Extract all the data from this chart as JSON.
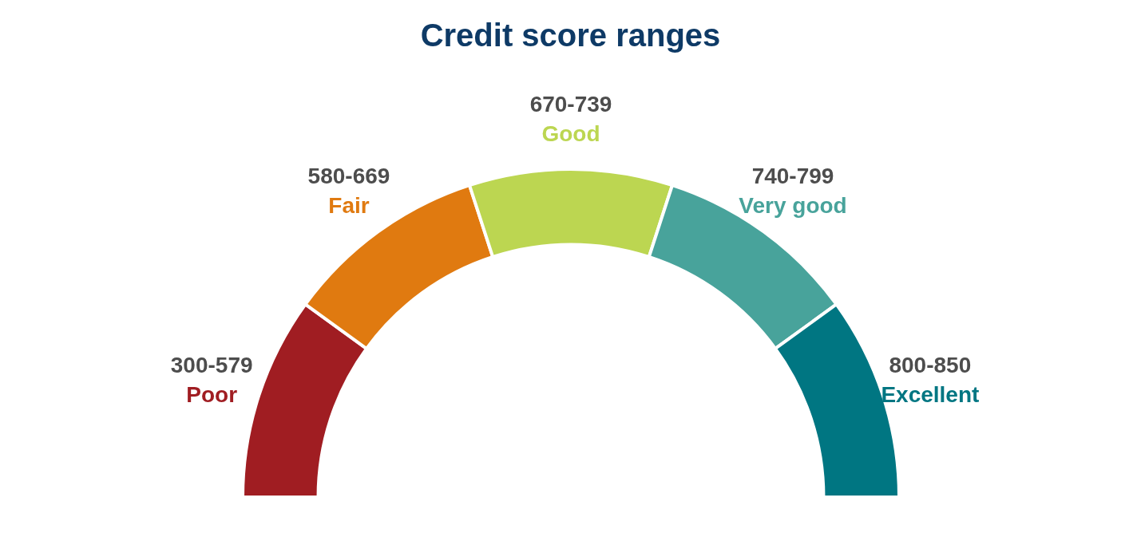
{
  "chart_data": {
    "type": "donut",
    "title": "Credit score ranges",
    "categories": [
      "Poor",
      "Fair",
      "Good",
      "Very good",
      "Excellent"
    ],
    "values": [
      20,
      20,
      20,
      20,
      20
    ],
    "colors": [
      "#a01d22",
      "#e07a10",
      "#bcd651",
      "#48a39b",
      "#007682"
    ],
    "value_labels": [
      "300-579",
      "580-669",
      "670-739",
      "740-799",
      "800-850"
    ]
  }
}
